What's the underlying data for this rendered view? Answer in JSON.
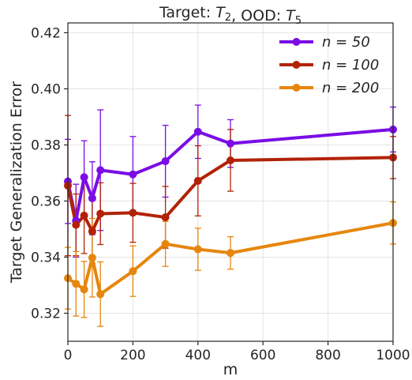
{
  "chart_data": {
    "type": "line",
    "title": "Target: T₂, OOD: T₅",
    "xlabel": "m",
    "ylabel": "Target Generalization Error",
    "xlim": [
      0,
      1000
    ],
    "ylim": [
      0.31,
      0.4235
    ],
    "x_ticks": [
      0,
      200,
      400,
      600,
      800,
      1000
    ],
    "x_tick_labels": [
      "0",
      "200",
      "400",
      "600",
      "800",
      "1000"
    ],
    "y_ticks": [
      0.32,
      0.34,
      0.36,
      0.38,
      0.4,
      0.42
    ],
    "y_tick_labels": [
      "0.32",
      "0.34",
      "0.36",
      "0.38",
      "0.40",
      "0.42"
    ],
    "grid": true,
    "legend_position": "top-right",
    "x": [
      0,
      25,
      50,
      75,
      100,
      200,
      300,
      400,
      500,
      1000
    ],
    "series": [
      {
        "name": "n = 50",
        "color": "#7a0de6",
        "values": [
          0.367,
          0.353,
          0.3685,
          0.361,
          0.371,
          0.3695,
          0.3742,
          0.3847,
          0.3805,
          0.3855
        ],
        "errors": [
          0.015,
          0.013,
          0.013,
          0.013,
          0.0215,
          0.0135,
          0.0128,
          0.0095,
          0.0085,
          0.008
        ]
      },
      {
        "name": "n = 100",
        "color": "#b22206",
        "values": [
          0.3655,
          0.3515,
          0.3548,
          0.3492,
          0.3555,
          0.3558,
          0.3542,
          0.3672,
          0.3745,
          0.3755
        ],
        "errors": [
          0.025,
          0.011,
          0.0135,
          0.0115,
          0.011,
          0.0105,
          0.011,
          0.0125,
          0.011,
          0.0075
        ]
      },
      {
        "name": "n = 200",
        "color": "#e6860d",
        "values": [
          0.3325,
          0.3305,
          0.3285,
          0.3398,
          0.3268,
          0.335,
          0.3447,
          0.3428,
          0.3415,
          0.3522
        ],
        "errors": [
          0.011,
          0.0115,
          0.01,
          0.014,
          0.0115,
          0.009,
          0.008,
          0.0075,
          0.0058,
          0.0075
        ]
      }
    ]
  }
}
